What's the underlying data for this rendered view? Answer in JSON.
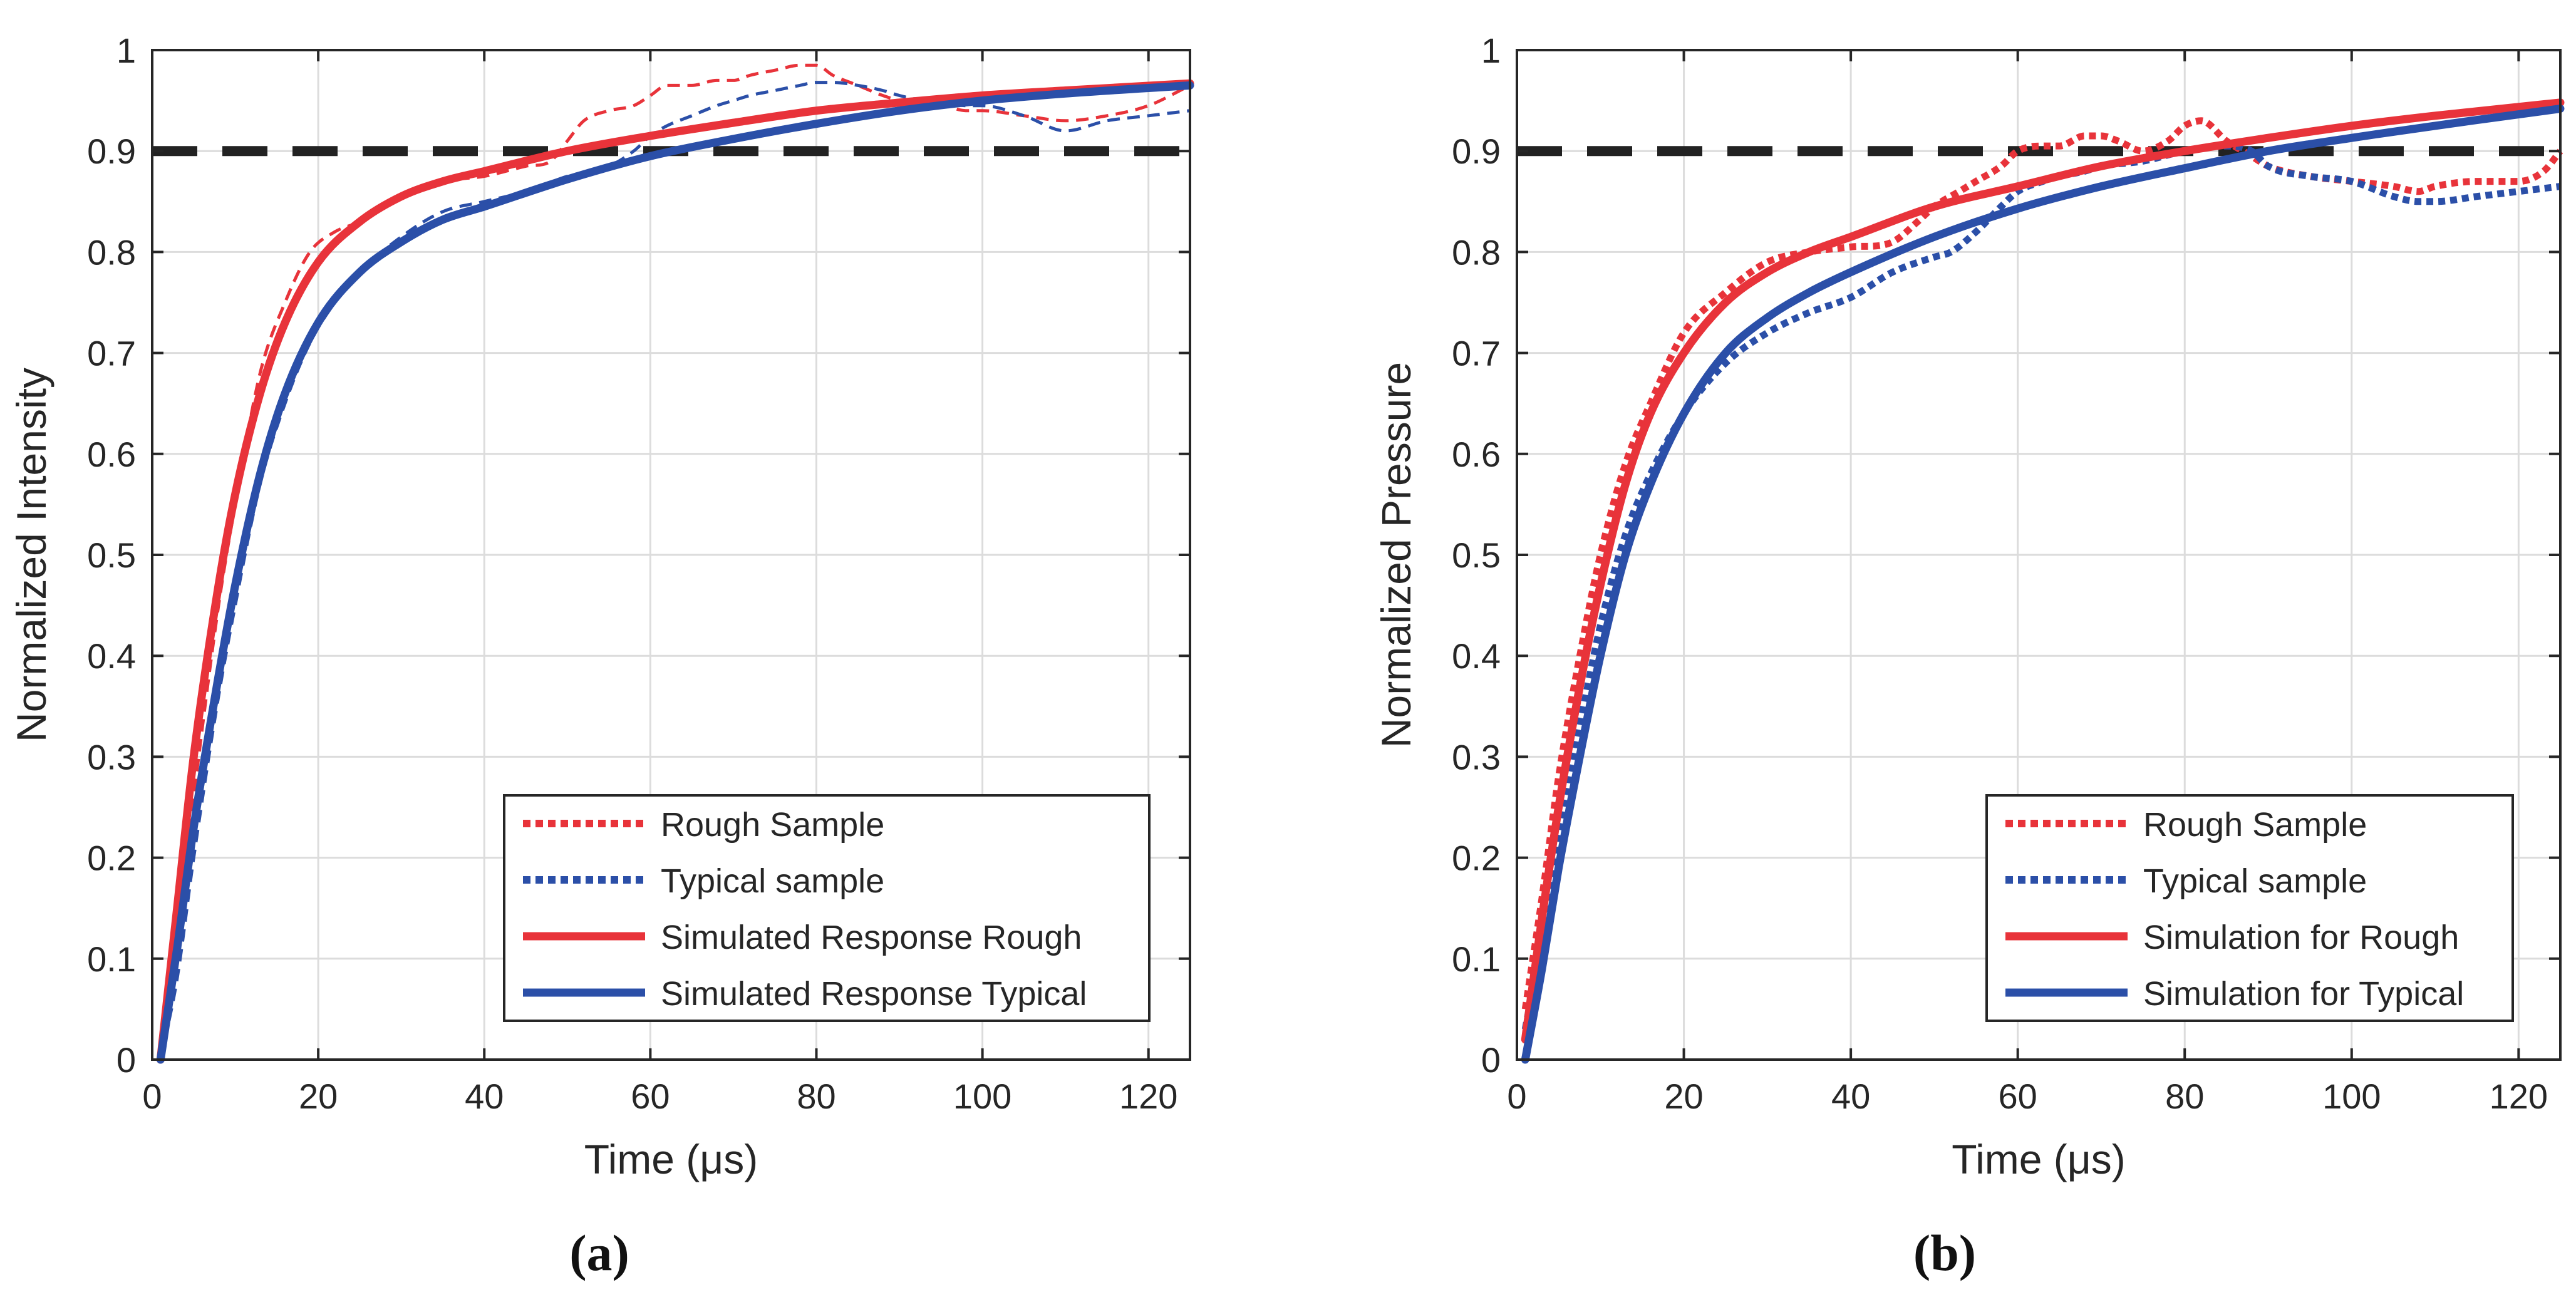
{
  "chart_data": [
    {
      "type": "line",
      "panel_label": "(a)",
      "xlabel": "Time (μs)",
      "ylabel": "Normalized Intensity",
      "xlim": [
        0,
        125
      ],
      "ylim": [
        0,
        1
      ],
      "xticks": [
        0,
        20,
        40,
        60,
        80,
        100,
        120
      ],
      "xtick_labels": [
        "0",
        "20",
        "40",
        "60",
        "80",
        "100",
        "120"
      ],
      "yticks": [
        0,
        0.1,
        0.2,
        0.3,
        0.4,
        0.5,
        0.6,
        0.7,
        0.8,
        0.9,
        1
      ],
      "ytick_labels": [
        "0",
        "0.1",
        "0.2",
        "0.3",
        "0.4",
        "0.5",
        "0.6",
        "0.7",
        "0.8",
        "0.9",
        "1"
      ],
      "grid": true,
      "legend_position": "bottom-right",
      "reference_line": {
        "y": 0.9,
        "style": "dashed",
        "color": "#222222"
      },
      "series": [
        {
          "name": "Rough Sample",
          "style": "dotted",
          "color": "#e8333a",
          "x": [
            1,
            3,
            5,
            8,
            10,
            13,
            16,
            19,
            22,
            25,
            30,
            35,
            40,
            45,
            48,
            50,
            52,
            55,
            58,
            60,
            62,
            65,
            68,
            70,
            72,
            75,
            78,
            80,
            82,
            85,
            88,
            90,
            93,
            95,
            98,
            100,
            105,
            110,
            115,
            120,
            125
          ],
          "y": [
            0.01,
            0.12,
            0.26,
            0.45,
            0.55,
            0.68,
            0.75,
            0.8,
            0.82,
            0.83,
            0.855,
            0.87,
            0.875,
            0.885,
            0.89,
            0.91,
            0.93,
            0.94,
            0.945,
            0.955,
            0.965,
            0.965,
            0.97,
            0.97,
            0.975,
            0.98,
            0.985,
            0.985,
            0.975,
            0.965,
            0.955,
            0.95,
            0.945,
            0.945,
            0.94,
            0.94,
            0.935,
            0.93,
            0.935,
            0.945,
            0.965
          ]
        },
        {
          "name": "Typical sample",
          "style": "dotted",
          "color": "#2b4fa8",
          "x": [
            1,
            3,
            5,
            8,
            10,
            13,
            16,
            19,
            22,
            25,
            30,
            35,
            40,
            45,
            50,
            55,
            58,
            60,
            62,
            65,
            68,
            70,
            72,
            75,
            78,
            80,
            82,
            85,
            88,
            90,
            93,
            95,
            98,
            100,
            105,
            110,
            115,
            120,
            125
          ],
          "y": [
            0.0,
            0.08,
            0.2,
            0.36,
            0.45,
            0.57,
            0.65,
            0.71,
            0.75,
            0.78,
            0.815,
            0.84,
            0.85,
            0.86,
            0.875,
            0.885,
            0.9,
            0.915,
            0.925,
            0.935,
            0.945,
            0.95,
            0.955,
            0.96,
            0.965,
            0.968,
            0.968,
            0.965,
            0.96,
            0.955,
            0.95,
            0.948,
            0.945,
            0.945,
            0.935,
            0.92,
            0.93,
            0.935,
            0.94
          ]
        },
        {
          "name": "Simulated Response Rough",
          "style": "solid",
          "color": "#e8333a",
          "x": [
            1,
            3,
            5,
            8,
            10,
            13,
            16,
            20,
            25,
            30,
            35,
            40,
            50,
            60,
            70,
            80,
            90,
            100,
            110,
            125
          ],
          "y": [
            0.0,
            0.15,
            0.3,
            0.47,
            0.56,
            0.66,
            0.73,
            0.79,
            0.83,
            0.855,
            0.87,
            0.88,
            0.9,
            0.915,
            0.928,
            0.94,
            0.948,
            0.955,
            0.96,
            0.967
          ]
        },
        {
          "name": "Simulated Response Typical",
          "style": "solid",
          "color": "#2b4fa8",
          "x": [
            1,
            3,
            5,
            8,
            10,
            13,
            16,
            20,
            25,
            30,
            35,
            40,
            50,
            60,
            70,
            80,
            90,
            100,
            110,
            125
          ],
          "y": [
            0.0,
            0.11,
            0.23,
            0.38,
            0.47,
            0.58,
            0.66,
            0.73,
            0.78,
            0.81,
            0.832,
            0.845,
            0.872,
            0.895,
            0.912,
            0.927,
            0.94,
            0.95,
            0.957,
            0.965
          ]
        }
      ]
    },
    {
      "type": "line",
      "panel_label": "(b)",
      "xlabel": "Time (μs)",
      "ylabel": "Normalized Pressure",
      "xlim": [
        0,
        125
      ],
      "ylim": [
        0,
        1
      ],
      "xticks": [
        0,
        20,
        40,
        60,
        80,
        100,
        120
      ],
      "xtick_labels": [
        "0",
        "20",
        "40",
        "60",
        "80",
        "100",
        "120"
      ],
      "yticks": [
        0,
        0.1,
        0.2,
        0.3,
        0.4,
        0.5,
        0.6,
        0.7,
        0.8,
        0.9,
        1
      ],
      "ytick_labels": [
        "0",
        "0.1",
        "0.2",
        "0.3",
        "0.4",
        "0.5",
        "0.6",
        "0.7",
        "0.8",
        "0.9",
        "1"
      ],
      "grid": true,
      "legend_position": "bottom-right",
      "reference_line": {
        "y": 0.9,
        "style": "dashed",
        "color": "#222222"
      },
      "series": [
        {
          "name": "Rough Sample",
          "style": "dotted",
          "color": "#e8333a",
          "x": [
            1,
            3,
            5,
            8,
            10,
            13,
            16,
            20,
            25,
            30,
            35,
            40,
            45,
            48,
            50,
            53,
            55,
            58,
            60,
            63,
            65,
            68,
            70,
            72,
            75,
            78,
            80,
            82,
            85,
            88,
            90,
            95,
            100,
            105,
            108,
            110,
            115,
            120,
            123,
            125
          ],
          "y": [
            0.05,
            0.16,
            0.28,
            0.42,
            0.5,
            0.59,
            0.65,
            0.72,
            0.76,
            0.79,
            0.8,
            0.805,
            0.81,
            0.83,
            0.845,
            0.86,
            0.87,
            0.885,
            0.9,
            0.905,
            0.905,
            0.915,
            0.915,
            0.91,
            0.9,
            0.91,
            0.925,
            0.93,
            0.91,
            0.895,
            0.885,
            0.875,
            0.87,
            0.865,
            0.86,
            0.865,
            0.87,
            0.87,
            0.88,
            0.9
          ]
        },
        {
          "name": "Typical sample",
          "style": "dotted",
          "color": "#2b4fa8",
          "x": [
            1,
            3,
            5,
            8,
            10,
            13,
            16,
            20,
            25,
            30,
            35,
            40,
            45,
            50,
            52,
            55,
            58,
            60,
            63,
            65,
            68,
            70,
            75,
            80,
            85,
            88,
            90,
            95,
            100,
            105,
            108,
            110,
            115,
            120,
            125
          ],
          "y": [
            0.03,
            0.12,
            0.22,
            0.35,
            0.43,
            0.52,
            0.58,
            0.64,
            0.69,
            0.72,
            0.74,
            0.755,
            0.78,
            0.795,
            0.8,
            0.82,
            0.845,
            0.86,
            0.87,
            0.875,
            0.88,
            0.885,
            0.89,
            0.9,
            0.905,
            0.9,
            0.885,
            0.875,
            0.87,
            0.855,
            0.85,
            0.85,
            0.855,
            0.86,
            0.865
          ]
        },
        {
          "name": "Simulation for Rough",
          "style": "solid",
          "color": "#e8333a",
          "x": [
            1,
            3,
            5,
            8,
            10,
            13,
            16,
            20,
            25,
            30,
            35,
            40,
            50,
            60,
            70,
            80,
            90,
            100,
            110,
            125
          ],
          "y": [
            0.02,
            0.14,
            0.25,
            0.39,
            0.47,
            0.57,
            0.64,
            0.7,
            0.75,
            0.78,
            0.8,
            0.815,
            0.845,
            0.865,
            0.885,
            0.9,
            0.913,
            0.925,
            0.935,
            0.948
          ]
        },
        {
          "name": "Simulation for Typical",
          "style": "solid",
          "color": "#2b4fa8",
          "x": [
            1,
            3,
            5,
            8,
            10,
            13,
            16,
            20,
            25,
            30,
            35,
            40,
            50,
            60,
            70,
            80,
            90,
            100,
            110,
            125
          ],
          "y": [
            0.0,
            0.09,
            0.19,
            0.32,
            0.4,
            0.5,
            0.57,
            0.64,
            0.7,
            0.735,
            0.76,
            0.78,
            0.815,
            0.843,
            0.865,
            0.883,
            0.9,
            0.913,
            0.925,
            0.942
          ]
        }
      ]
    }
  ]
}
